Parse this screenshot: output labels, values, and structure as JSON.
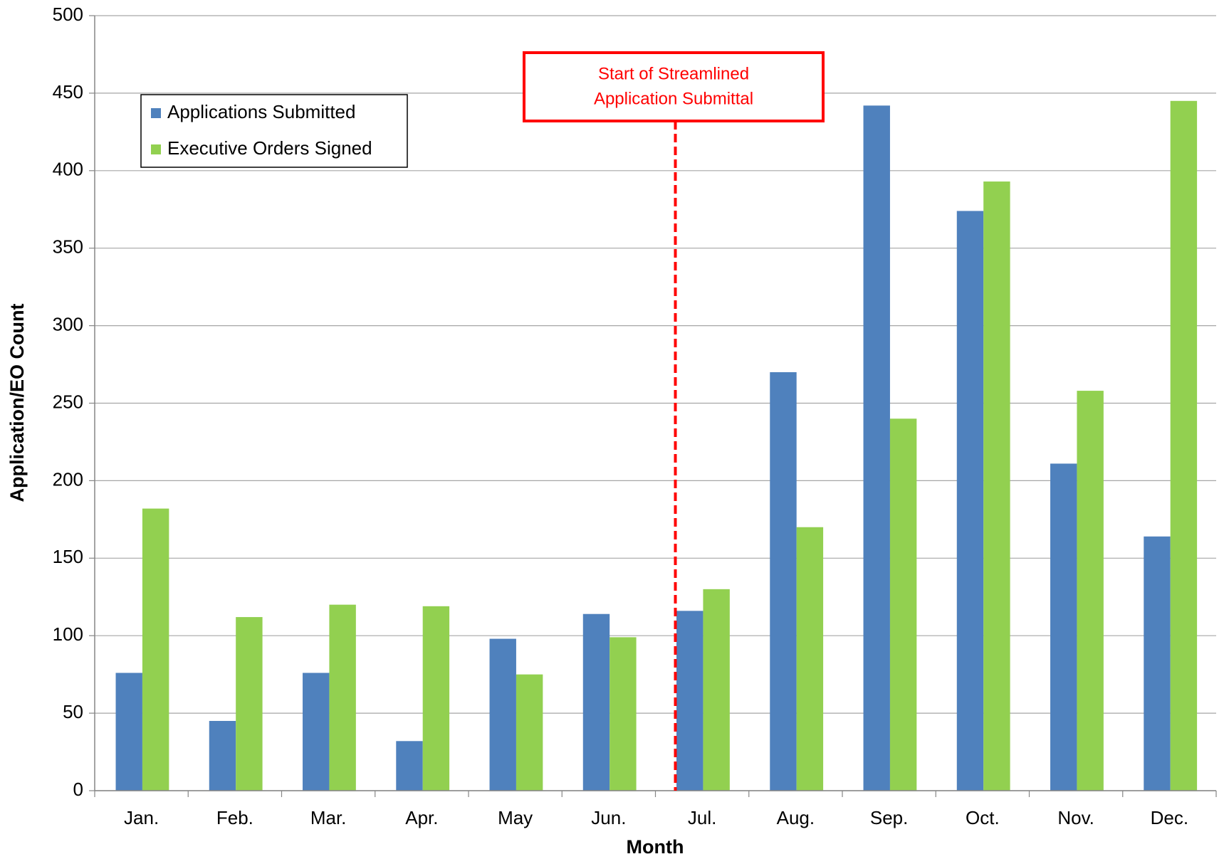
{
  "chart_data": {
    "type": "bar",
    "x_label": "Month",
    "y_label": "Application/EO Count",
    "categories": [
      "Jan.",
      "Feb.",
      "Mar.",
      "Apr.",
      "May",
      "Jun.",
      "Jul.",
      "Aug.",
      "Sep.",
      "Oct.",
      "Nov.",
      "Dec."
    ],
    "series": [
      {
        "name": "Applications Submitted",
        "color": "#4f81bd",
        "values": [
          76,
          45,
          76,
          32,
          98,
          114,
          116,
          270,
          442,
          374,
          211,
          164
        ]
      },
      {
        "name": "Executive Orders Signed",
        "color": "#92d050",
        "values": [
          182,
          112,
          120,
          119,
          75,
          99,
          130,
          170,
          240,
          393,
          258,
          445
        ]
      }
    ],
    "ylim": [
      0,
      500
    ],
    "yticks": [
      0,
      50,
      100,
      150,
      200,
      250,
      300,
      350,
      400,
      450,
      500
    ],
    "grid": true,
    "annotation": [
      "Start of Streamlined",
      "Application Submittal"
    ],
    "annotation_color": "#ff0000"
  }
}
